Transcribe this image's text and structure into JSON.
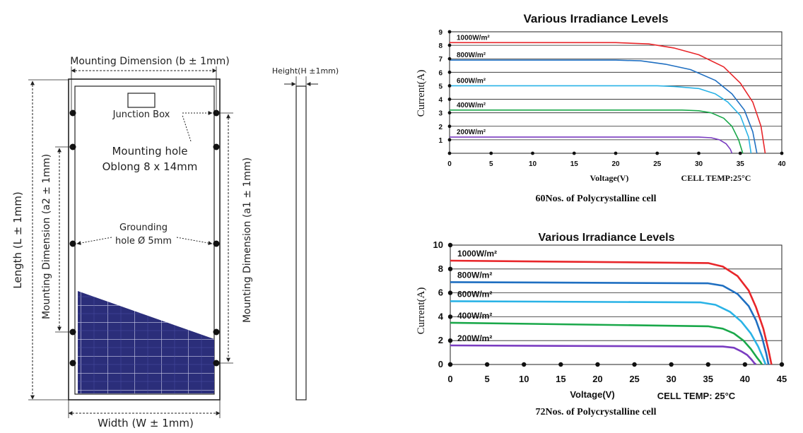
{
  "drawing": {
    "mounting_b": "Mounting Dimension (b ± 1mm)",
    "junction_box": "Junction Box",
    "mounting_hole_1": "Mounting hole",
    "mounting_hole_2": "Oblong 8 x 14mm",
    "grounding_1": "Grounding",
    "grounding_2": "hole Ø 5mm",
    "length": "Length (L ± 1mm)",
    "a2": "Mounting Dimension (a2 ± 1mm)",
    "a1": "Mounting Dimension (a1 ± 1mm)",
    "width": "Width (W ± 1mm)",
    "height": "Height(H ±1mm)"
  },
  "chart_data": [
    {
      "type": "line",
      "title": "Various Irradiance Levels",
      "xlabel": "Voltage(V)",
      "ylabel": "Current(A)",
      "annotation": "CELL TEMP:25°C",
      "caption": "60Nos. of Polycrystalline cell",
      "xlim": [
        0,
        40
      ],
      "ylim": [
        0,
        9
      ],
      "xticks": [
        "0",
        "5",
        "10",
        "15",
        "20",
        "25",
        "30",
        "35",
        "40"
      ],
      "yticks": [
        "1",
        "2",
        "3",
        "4",
        "5",
        "6",
        "7",
        "8",
        "9"
      ],
      "grid": true,
      "series": [
        {
          "name": "1000W/m²",
          "color": "#e8262a",
          "x": [
            0,
            20,
            24,
            27,
            30,
            33,
            35,
            36.5,
            37.5,
            38.0
          ],
          "y": [
            8.2,
            8.2,
            8.1,
            7.8,
            7.3,
            6.4,
            5.2,
            3.8,
            2.0,
            0
          ]
        },
        {
          "name": "800W/m²",
          "color": "#1f6fc1",
          "x": [
            0,
            20,
            23,
            26,
            29,
            32,
            34,
            35.5,
            36.5,
            37.0
          ],
          "y": [
            6.9,
            6.9,
            6.85,
            6.6,
            6.2,
            5.4,
            4.4,
            3.2,
            1.6,
            0
          ]
        },
        {
          "name": "600W/m²",
          "color": "#2ab3e6",
          "x": [
            0,
            25,
            27,
            30,
            32,
            33.5,
            35,
            36.0,
            36.3
          ],
          "y": [
            5.0,
            5.0,
            4.95,
            4.8,
            4.4,
            3.8,
            2.8,
            1.2,
            0
          ]
        },
        {
          "name": "400W/m²",
          "color": "#1aa84a",
          "x": [
            0,
            28,
            30,
            31.5,
            33,
            34,
            34.8,
            35.3
          ],
          "y": [
            3.2,
            3.2,
            3.15,
            3.0,
            2.6,
            2.0,
            1.0,
            0
          ]
        },
        {
          "name": "200W/m²",
          "color": "#7a3cc1",
          "x": [
            0,
            30,
            31.5,
            32.5,
            33.3,
            33.8,
            34.0
          ],
          "y": [
            1.2,
            1.2,
            1.15,
            1.0,
            0.7,
            0.3,
            0
          ]
        }
      ]
    },
    {
      "type": "line",
      "title": "Various Irradiance Levels",
      "xlabel": "Voltage(V)",
      "ylabel": "Current(A)",
      "annotation": "CELL TEMP: 25°C",
      "caption": "72Nos. of Polycrystalline cell",
      "xlim": [
        0,
        45
      ],
      "ylim": [
        0,
        10
      ],
      "xticks": [
        "0",
        "5",
        "10",
        "15",
        "20",
        "25",
        "30",
        "35",
        "40",
        "45"
      ],
      "yticks": [
        "0",
        "2",
        "4",
        "6",
        "8",
        "10"
      ],
      "grid": true,
      "series": [
        {
          "name": "1000W/m²",
          "color": "#e8262a",
          "x": [
            0,
            35,
            37,
            39,
            40.5,
            41.5,
            42.5,
            43.2,
            43.6
          ],
          "y": [
            8.7,
            8.5,
            8.2,
            7.4,
            6.2,
            4.8,
            3.0,
            1.2,
            0
          ]
        },
        {
          "name": "800W/m²",
          "color": "#1f6fc1",
          "x": [
            0,
            35,
            37,
            39,
            40.5,
            41.5,
            42.3,
            42.9,
            43.2
          ],
          "y": [
            6.9,
            6.8,
            6.6,
            5.9,
            4.9,
            3.7,
            2.3,
            0.9,
            0
          ]
        },
        {
          "name": "600W/m²",
          "color": "#2ab3e6",
          "x": [
            0,
            34,
            36,
            38,
            39.5,
            40.8,
            41.8,
            42.5,
            42.8
          ],
          "y": [
            5.3,
            5.2,
            5.0,
            4.4,
            3.6,
            2.6,
            1.5,
            0.5,
            0
          ]
        },
        {
          "name": "400W/m²",
          "color": "#1aa84a",
          "x": [
            0,
            35,
            37,
            38.5,
            39.8,
            40.8,
            41.6,
            42.1,
            42.3
          ],
          "y": [
            3.5,
            3.2,
            3.0,
            2.6,
            2.0,
            1.3,
            0.6,
            0.2,
            0
          ]
        },
        {
          "name": "200W/m²",
          "color": "#7a3cc1",
          "x": [
            0,
            37,
            38.5,
            39.5,
            40.3,
            40.9,
            41.3,
            41.5
          ],
          "y": [
            1.6,
            1.5,
            1.4,
            1.1,
            0.8,
            0.4,
            0.1,
            0
          ]
        }
      ]
    }
  ]
}
